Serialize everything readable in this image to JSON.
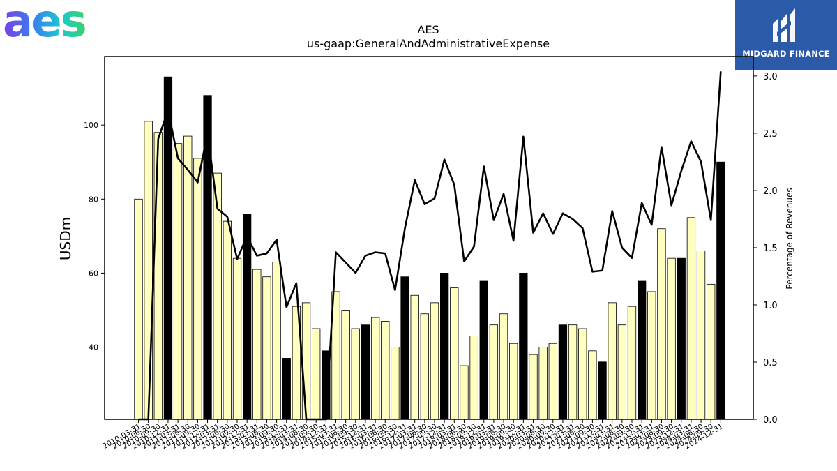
{
  "logos": {
    "left_text": "aes",
    "right_text": "MIDGARD FINANCE"
  },
  "colors": {
    "bar_fill": "#ffffc0",
    "bar_q4_fill": "#000000",
    "bar_edge": "#000000",
    "line": "#000000",
    "logo_right_bg": "#2b5aa8"
  },
  "chart_data": {
    "type": "bar",
    "title": "AES",
    "subtitle": "us-gaap:GeneralAndAdministrativeExpense",
    "ylabel": "USDm",
    "y2label": "Percentage of Revenues",
    "ylim": [
      20.5,
      118.5
    ],
    "y2lim": [
      0,
      3.17
    ],
    "yticks": [
      40,
      60,
      80,
      100
    ],
    "y2ticks": [
      0.0,
      0.5,
      1.0,
      1.5,
      2.0,
      2.5,
      3.0
    ],
    "grid": false,
    "categories": [
      "2010-03-31",
      "2010-06-30",
      "2010-09-30",
      "2010-12-31",
      "2011-03-31",
      "2011-06-30",
      "2011-09-30",
      "2011-12-31",
      "2012-03-31",
      "2012-06-30",
      "2012-09-30",
      "2012-12-31",
      "2013-03-31",
      "2013-06-30",
      "2013-09-30",
      "2013-12-31",
      "2014-03-31",
      "2014-06-30",
      "2014-09-30",
      "2014-12-31",
      "2015-03-31",
      "2015-06-30",
      "2015-09-30",
      "2015-12-31",
      "2016-03-31",
      "2016-06-30",
      "2016-09-30",
      "2016-12-31",
      "2017-03-31",
      "2017-06-30",
      "2017-09-30",
      "2017-12-31",
      "2018-03-31",
      "2018-06-30",
      "2018-09-30",
      "2018-12-31",
      "2019-03-31",
      "2019-06-30",
      "2019-09-30",
      "2019-12-31",
      "2020-03-31",
      "2020-06-30",
      "2020-09-30",
      "2020-12-31",
      "2021-03-31",
      "2021-06-30",
      "2021-09-30",
      "2021-12-31",
      "2022-03-31",
      "2022-06-30",
      "2022-09-30",
      "2022-12-31",
      "2023-03-31",
      "2023-06-30",
      "2023-09-30",
      "2023-12-31",
      "2024-03-31",
      "2024-06-30",
      "2024-09-30",
      "2024-12-31"
    ],
    "series": [
      {
        "type": "bar",
        "values": [
          80,
          101,
          98,
          113,
          95,
          97,
          91,
          108,
          87,
          74,
          64,
          76,
          61,
          59,
          63,
          37,
          51,
          52,
          45,
          39,
          55,
          50,
          45,
          46,
          48,
          47,
          40,
          59,
          54,
          49,
          52,
          60,
          56,
          35,
          43,
          58,
          46,
          49,
          41,
          60,
          38,
          40,
          41,
          46,
          46,
          45,
          39,
          36,
          52,
          46,
          51,
          58,
          55,
          72,
          64,
          64,
          75,
          66,
          57,
          90
        ],
        "highlight_q4": true
      },
      {
        "type": "line",
        "axis": "right",
        "values": [
          0.0,
          0.0,
          2.45,
          2.7,
          2.28,
          2.18,
          2.07,
          2.5,
          1.84,
          1.77,
          1.4,
          1.6,
          1.43,
          1.45,
          1.57,
          0.98,
          1.19,
          0.0,
          0.0,
          0.0,
          1.46,
          1.37,
          1.28,
          1.43,
          1.46,
          1.45,
          1.13,
          1.67,
          2.09,
          1.88,
          1.93,
          2.27,
          2.05,
          1.38,
          1.51,
          2.21,
          1.74,
          1.97,
          1.56,
          2.47,
          1.63,
          1.8,
          1.62,
          1.8,
          1.75,
          1.67,
          1.29,
          1.3,
          1.82,
          1.5,
          1.41,
          1.89,
          1.7,
          2.38,
          1.87,
          2.17,
          2.43,
          2.25,
          1.74,
          3.04
        ]
      }
    ]
  }
}
